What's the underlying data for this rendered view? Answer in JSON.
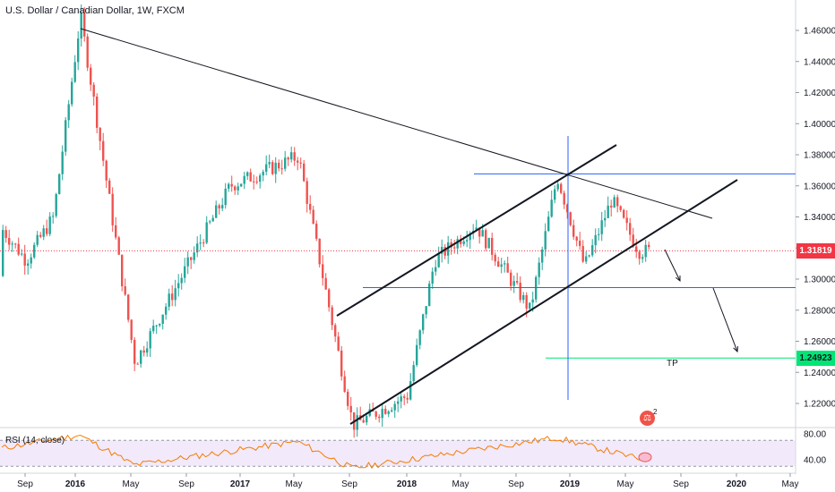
{
  "header": {
    "title": "U.S. Dollar / Canadian Dollar, 1W, FXCM",
    "rsi_label": "RSI (14, close)"
  },
  "price_axis": {
    "ticks": [
      "1.46000",
      "1.44000",
      "1.42000",
      "1.40000",
      "1.38000",
      "1.36000",
      "1.34000",
      "1.32000",
      "1.30000",
      "1.28000",
      "1.26000",
      "1.24000",
      "1.22000"
    ],
    "tick_values": [
      1.46,
      1.44,
      1.42,
      1.4,
      1.38,
      1.36,
      1.34,
      1.32,
      1.3,
      1.28,
      1.26,
      1.24,
      1.22
    ],
    "current_price_label": "1.31819",
    "target_price_label": "1.24923"
  },
  "rsi_axis": {
    "ticks": [
      "80.00",
      "40.00"
    ],
    "tick_values": [
      80,
      40
    ]
  },
  "time_axis": {
    "labels": [
      "Sep",
      "2016",
      "May",
      "Sep",
      "2017",
      "May",
      "Sep",
      "2018",
      "May",
      "Sep",
      "2019",
      "May",
      "Sep",
      "2020",
      "May"
    ],
    "bold": [
      false,
      true,
      false,
      false,
      true,
      false,
      false,
      true,
      false,
      false,
      true,
      false,
      false,
      true,
      false
    ]
  },
  "annotations": {
    "tp_label": "TP",
    "logo_glyph": "⚖",
    "logo_badge": "2"
  },
  "colors": {
    "up": "#26a69a",
    "down": "#ef5350",
    "trendline": "#131722",
    "horizontal_level": "#2962ff",
    "target_level": "#00e676",
    "current_price": "#f23645",
    "rsi_line": "#f57c00",
    "rsi_band": "#e8d7f8"
  },
  "chart_data": {
    "type": "candlestick",
    "title": "U.S. Dollar / Canadian Dollar, 1W, FXCM",
    "interval": "1W",
    "ylim": [
      1.2,
      1.48
    ],
    "current_price": 1.31819,
    "levels": {
      "resistance": 1.3677,
      "support": 1.2945,
      "take_profit": 1.24923
    },
    "channel_anchor": {
      "low": 1.225,
      "high": 1.365
    },
    "key_points": [
      {
        "date": "Jan 2016",
        "price": 1.469
      },
      {
        "date": "May 2016",
        "price": 1.246
      },
      {
        "date": "Dec 2016",
        "price": 1.36
      },
      {
        "date": "May 2017",
        "price": 1.379
      },
      {
        "date": "Sep 2017",
        "price": 1.206
      },
      {
        "date": "Jan 2018",
        "price": 1.225
      },
      {
        "date": "Mar 2018",
        "price": 1.312
      },
      {
        "date": "Jun 2018",
        "price": 1.335
      },
      {
        "date": "Oct 2018",
        "price": 1.28
      },
      {
        "date": "Dec 2018",
        "price": 1.366
      },
      {
        "date": "Feb 2019",
        "price": 1.308
      },
      {
        "date": "Apr 2019",
        "price": 1.351
      },
      {
        "date": "Jun 2019",
        "price": 1.318
      }
    ],
    "rsi": {
      "period": 14,
      "ylim": [
        20,
        100
      ],
      "band": [
        30,
        70
      ],
      "key_points": [
        {
          "date": "Jan 2016",
          "value": 78
        },
        {
          "date": "May 2016",
          "value": 32
        },
        {
          "date": "May 2017",
          "value": 68
        },
        {
          "date": "Sep 2017",
          "value": 27
        },
        {
          "date": "Dec 2018",
          "value": 74
        },
        {
          "date": "Jun 2019",
          "value": 42
        }
      ]
    }
  }
}
